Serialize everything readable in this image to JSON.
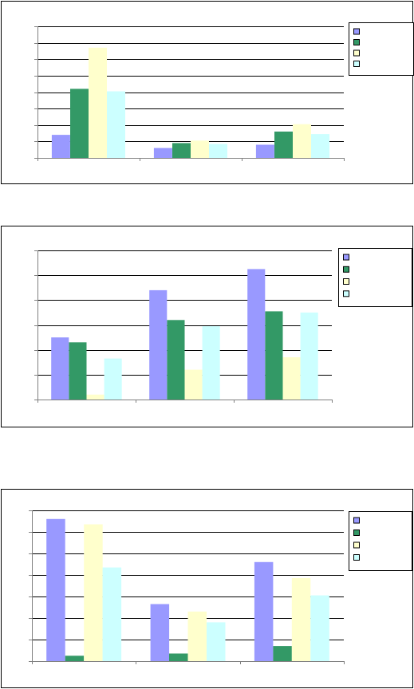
{
  "colors": {
    "series": [
      "#9999ff",
      "#339966",
      "#ffffcc",
      "#ccffff"
    ],
    "gridline": "#000000",
    "axis": "#808080"
  },
  "chart_data": [
    {
      "type": "bar",
      "title": "",
      "xlabel": "",
      "ylabel": "",
      "categories": [
        "",
        "",
        ""
      ],
      "ylim": [
        0,
        8
      ],
      "grid": true,
      "legend_position": "right",
      "series": [
        {
          "values": [
            1.4,
            0.6,
            0.8
          ]
        },
        {
          "values": [
            4.2,
            0.9,
            1.6
          ]
        },
        {
          "values": [
            6.7,
            1.05,
            2.05
          ]
        },
        {
          "values": [
            4.05,
            0.85,
            1.45
          ]
        }
      ]
    },
    {
      "type": "bar",
      "title": "",
      "xlabel": "",
      "ylabel": "",
      "categories": [
        "",
        "",
        ""
      ],
      "ylim": [
        0,
        6
      ],
      "grid": true,
      "legend_position": "right",
      "series": [
        {
          "values": [
            2.5,
            4.4,
            5.25
          ]
        },
        {
          "values": [
            2.3,
            3.2,
            3.55
          ]
        },
        {
          "values": [
            0.2,
            1.2,
            1.7
          ]
        },
        {
          "values": [
            1.65,
            2.95,
            3.5
          ]
        }
      ]
    },
    {
      "type": "bar",
      "title": "",
      "xlabel": "",
      "ylabel": "",
      "categories": [
        "",
        "",
        ""
      ],
      "ylim": [
        0,
        7
      ],
      "grid": true,
      "legend_position": "right",
      "series": [
        {
          "values": [
            6.6,
            2.65,
            4.6
          ]
        },
        {
          "values": [
            0.25,
            0.35,
            0.7
          ]
        },
        {
          "values": [
            6.35,
            2.3,
            3.85
          ]
        },
        {
          "values": [
            4.35,
            1.8,
            3.05
          ]
        }
      ]
    }
  ]
}
